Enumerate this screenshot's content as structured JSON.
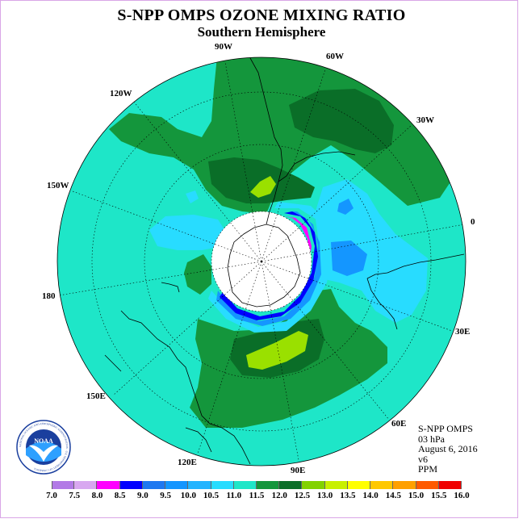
{
  "title": "S-NPP OMPS OZONE MIXING RATIO",
  "subtitle": "Southern Hemisphere",
  "longitude_labels": {
    "w90": "90W",
    "w60": "60W",
    "w30": "30W",
    "lon0": "0",
    "e30": "30E",
    "e60": "60E",
    "e90": "90E",
    "e120": "120E",
    "e150": "150E",
    "lon180": "180",
    "w150": "150W",
    "w120": "120W"
  },
  "info": {
    "instrument": "S-NPP OMPS",
    "level": "03 hPa",
    "date": "August 6, 2016",
    "version": "v6",
    "units": "PPM"
  },
  "logo": {
    "text": "NOAA",
    "ring_text": "NATIONAL OCEANIC AND ATMOSPHERIC ADMINISTRATION · U.S. DEPARTMENT OF COMMERCE"
  },
  "colorbar": {
    "labels": [
      "7.0",
      "7.5",
      "8.0",
      "8.5",
      "9.0",
      "9.5",
      "10.0",
      "10.5",
      "11.0",
      "11.5",
      "12.0",
      "12.5",
      "13.0",
      "13.5",
      "14.0",
      "14.5",
      "15.0",
      "15.5",
      "16.0"
    ],
    "colors": [
      "#b27ae6",
      "#d8a8f0",
      "#ff00ff",
      "#0000ff",
      "#1e78f0",
      "#1496ff",
      "#23b4ff",
      "#28dcff",
      "#1ee6c8",
      "#14963c",
      "#0a6e28",
      "#82d200",
      "#c8f000",
      "#ffff00",
      "#ffc800",
      "#ffa000",
      "#ff5a00",
      "#f00000",
      "#a05a3c"
    ]
  },
  "map_colors": {
    "background": "#1ee6c8",
    "green_mid": "#14963c",
    "green_dark": "#0a6e28",
    "yellow_green": "#9ae000",
    "light_blue": "#28dcff",
    "blue_mid": "#1496ff",
    "blue_dark": "#0000ff",
    "magenta": "#ff00ff",
    "lavender": "#c89be6",
    "hole": "#ffffff"
  }
}
